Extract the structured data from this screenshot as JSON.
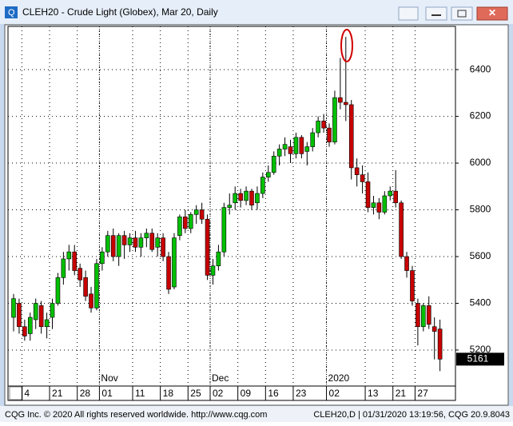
{
  "window": {
    "title": "CLEH20 - Crude Light (Globex), Mar 20, Daily",
    "status_left": "CQG Inc. © 2020 All rights reserved worldwide. http://www.cqg.com",
    "status_right": "CLEH20,D | 01/31/2020 13:19:56, CQG 20.9.8043"
  },
  "chart_data": {
    "type": "candlestick",
    "categories": [
      null,
      null,
      "4",
      null,
      null,
      null,
      null,
      "21",
      null,
      null,
      null,
      null,
      "28",
      null,
      null,
      null,
      "01",
      null,
      null,
      null,
      null,
      null,
      "11",
      null,
      null,
      null,
      null,
      "18",
      null,
      null,
      null,
      null,
      "25",
      null,
      null,
      null,
      "02",
      null,
      null,
      null,
      null,
      "09",
      null,
      null,
      null,
      null,
      "16",
      null,
      null,
      null,
      null,
      "23",
      null,
      null,
      null,
      null,
      null,
      "02",
      null,
      null,
      null,
      null,
      null,
      null,
      "13",
      null,
      null,
      null,
      null,
      "21",
      null,
      null,
      null,
      "27",
      null,
      null,
      null,
      null
    ],
    "month_labels": [
      null,
      null,
      null,
      null,
      null,
      null,
      null,
      null,
      null,
      null,
      null,
      null,
      null,
      null,
      null,
      null,
      "Nov",
      null,
      null,
      null,
      null,
      null,
      null,
      null,
      null,
      null,
      null,
      null,
      null,
      null,
      null,
      null,
      null,
      null,
      null,
      null,
      "Dec",
      null,
      null,
      null,
      null,
      null,
      null,
      null,
      null,
      null,
      null,
      null,
      null,
      null,
      null,
      null,
      null,
      null,
      null,
      null,
      null,
      "2020",
      null,
      null,
      null,
      null,
      null,
      null,
      null,
      null,
      null,
      null,
      null,
      null,
      null,
      null,
      null,
      null,
      null,
      null,
      null,
      null
    ],
    "open": [
      5340,
      5400,
      5300,
      5270,
      5330,
      5390,
      5300,
      5340,
      5400,
      5510,
      5590,
      5620,
      5550,
      5510,
      5440,
      5380,
      5570,
      5620,
      5690,
      5600,
      5690,
      5650,
      5680,
      5640,
      5680,
      5700,
      5640,
      5680,
      5600,
      5470,
      5690,
      5770,
      5720,
      5780,
      5800,
      5760,
      5520,
      5560,
      5620,
      5810,
      5830,
      5870,
      5840,
      5880,
      5830,
      5870,
      5940,
      5960,
      6030,
      6060,
      6070,
      6040,
      6110,
      6050,
      6070,
      6130,
      6180,
      6150,
      6090,
      6280,
      6260,
      6250,
      5980,
      5950,
      5920,
      5810,
      5830,
      5790,
      5860,
      5880,
      5830,
      5600,
      5540,
      5400,
      5300,
      5390,
      5300,
      5290
    ],
    "high": [
      5440,
      5420,
      5330,
      5360,
      5420,
      5410,
      5360,
      5420,
      5530,
      5620,
      5650,
      5650,
      5570,
      5540,
      5470,
      5590,
      5640,
      5710,
      5720,
      5700,
      5710,
      5700,
      5710,
      5700,
      5720,
      5720,
      5700,
      5700,
      5620,
      5700,
      5780,
      5800,
      5790,
      5820,
      5830,
      5780,
      5590,
      5650,
      5830,
      5870,
      5900,
      5890,
      5900,
      5890,
      5900,
      5960,
      5990,
      6050,
      6080,
      6110,
      6100,
      6130,
      6120,
      6090,
      6150,
      6200,
      6210,
      6170,
      6310,
      6450,
      6540,
      6270,
      6020,
      5990,
      5960,
      5860,
      5850,
      5880,
      5900,
      5970,
      5840,
      5620,
      5560,
      5420,
      5400,
      5430,
      5340,
      5330
    ],
    "low": [
      5280,
      5270,
      5240,
      5240,
      5290,
      5270,
      5250,
      5290,
      5390,
      5480,
      5540,
      5520,
      5470,
      5410,
      5360,
      5370,
      5540,
      5600,
      5580,
      5560,
      5590,
      5620,
      5620,
      5600,
      5640,
      5620,
      5600,
      5580,
      5440,
      5460,
      5670,
      5700,
      5700,
      5740,
      5740,
      5500,
      5480,
      5540,
      5600,
      5780,
      5800,
      5810,
      5820,
      5800,
      5800,
      5850,
      5920,
      5950,
      5990,
      6030,
      6000,
      6020,
      6020,
      5990,
      6050,
      6110,
      6130,
      6070,
      6080,
      6230,
      6180,
      5930,
      5900,
      5870,
      5790,
      5780,
      5760,
      5780,
      5840,
      5810,
      5590,
      5510,
      5390,
      5220,
      5280,
      5290,
      5160,
      5110
    ],
    "close": [
      5420,
      5300,
      5260,
      5340,
      5400,
      5300,
      5330,
      5400,
      5510,
      5590,
      5620,
      5540,
      5500,
      5430,
      5380,
      5570,
      5620,
      5690,
      5600,
      5690,
      5650,
      5680,
      5640,
      5680,
      5700,
      5630,
      5680,
      5600,
      5460,
      5680,
      5770,
      5720,
      5780,
      5800,
      5760,
      5520,
      5560,
      5620,
      5810,
      5820,
      5870,
      5840,
      5880,
      5820,
      5870,
      5940,
      5960,
      6030,
      6060,
      6080,
      6040,
      6110,
      6040,
      6070,
      6130,
      6180,
      6150,
      6090,
      6280,
      6260,
      6250,
      5980,
      5950,
      5920,
      5810,
      5830,
      5790,
      5860,
      5880,
      5830,
      5600,
      5540,
      5410,
      5300,
      5390,
      5310,
      5280,
      5161
    ],
    "up_color": "#00c000",
    "down_color": "#c80000",
    "ylim": [
      5046,
      6585
    ],
    "yticks": [
      5200,
      5400,
      5600,
      5800,
      6000,
      6200,
      6400
    ],
    "grid": true
  }
}
